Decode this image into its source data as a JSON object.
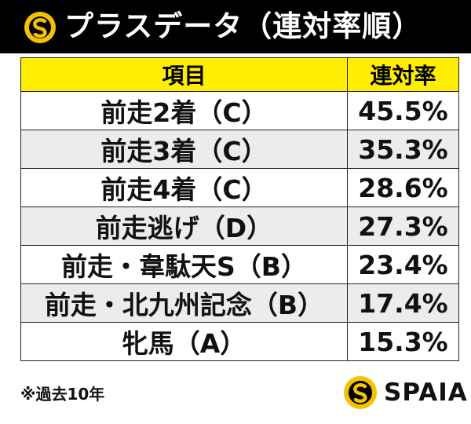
{
  "title": "プラスデータ（連対率順）",
  "brand": {
    "name": "SPAIA",
    "logo_icon": "spaia-logo-icon"
  },
  "colors": {
    "header_bg": "#ffee00",
    "title_bg": "#000000",
    "logo_yellow": "#f5c200"
  },
  "table": {
    "headers": [
      "項目",
      "連対率"
    ],
    "rows": [
      {
        "item": "前走2着（C）",
        "rate": "45.5%"
      },
      {
        "item": "前走3着（C）",
        "rate": "35.3%"
      },
      {
        "item": "前走4着（C）",
        "rate": "28.6%"
      },
      {
        "item": "前走逃げ（D）",
        "rate": "27.3%"
      },
      {
        "item": "前走・韋駄天S（B）",
        "rate": "23.4%"
      },
      {
        "item": "前走・北九州記念（B）",
        "rate": "17.4%"
      },
      {
        "item": "牝馬（A）",
        "rate": "15.3%"
      }
    ]
  },
  "footnote": "※過去10年"
}
